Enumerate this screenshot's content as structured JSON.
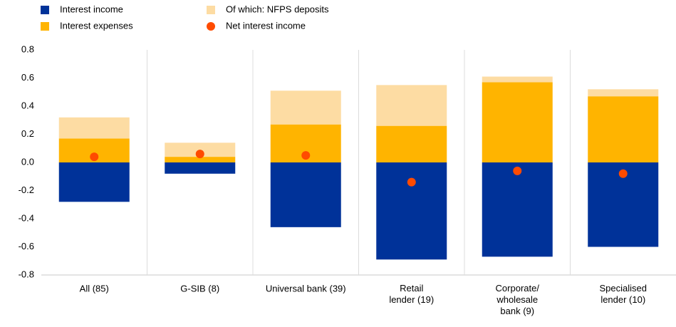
{
  "chart_data": {
    "type": "bar",
    "categories": [
      "All (85)",
      "G-SIB (8)",
      "Universal bank (39)",
      "Retail\nlender (19)",
      "Corporate/\nwholesale\nbank (9)",
      "Specialised\nlender (10)"
    ],
    "series": [
      {
        "name": "Interest income",
        "color": "#003299",
        "stack": "neg",
        "values": [
          -0.28,
          -0.08,
          -0.46,
          -0.69,
          -0.67,
          -0.6
        ]
      },
      {
        "name": "Interest expenses",
        "color": "#ffb400",
        "stack": "pos",
        "values": [
          0.17,
          0.04,
          0.27,
          0.26,
          0.57,
          0.47
        ]
      },
      {
        "name": "Of which: NFPS deposits",
        "color": "#fddca3",
        "stack": "pos",
        "values": [
          0.15,
          0.1,
          0.24,
          0.29,
          0.04,
          0.05
        ]
      },
      {
        "name": "Net interest income",
        "color": "#ff4b00",
        "marker": "dot",
        "values": [
          0.04,
          0.06,
          0.05,
          -0.14,
          -0.06,
          -0.08
        ]
      }
    ],
    "ylim": [
      -0.8,
      0.8
    ],
    "yticks": [
      -0.8,
      -0.6,
      -0.4,
      -0.2,
      {
        "value": 0,
        "label": "0.0"
      },
      0.2,
      0.4,
      0.6,
      0.8
    ],
    "category_separators": true
  }
}
